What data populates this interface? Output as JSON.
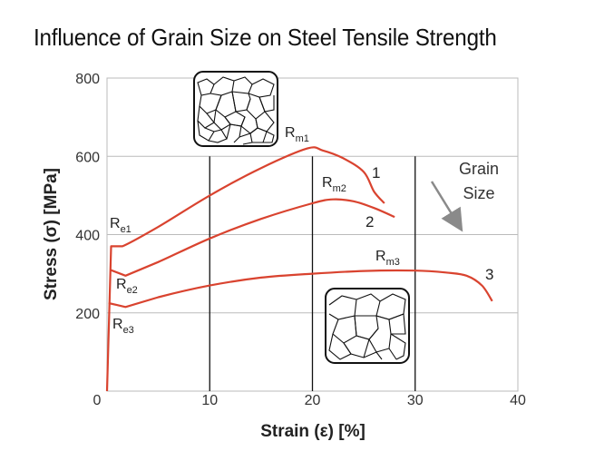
{
  "chart_data": {
    "type": "line",
    "title": "Influence of Grain Size on Steel Tensile Strength",
    "xlabel": "Strain (ε) [%]",
    "ylabel": "Stress (σ) [MPa]",
    "xlim": [
      0,
      40
    ],
    "ylim": [
      0,
      800
    ],
    "x_ticks": [
      "0",
      "10",
      "20",
      "30",
      "40"
    ],
    "y_ticks": [
      "800",
      "600",
      "400",
      "200"
    ],
    "grid": "vertical lines at 10, 20, 30; horizontal lines at 200, 400, 600, 800",
    "line_color": "#d9432f",
    "series": [
      {
        "name": "1",
        "points": [
          [
            0,
            0
          ],
          [
            0.4,
            370
          ],
          [
            1.5,
            370
          ],
          [
            5,
            420
          ],
          [
            10,
            500
          ],
          [
            15,
            570
          ],
          [
            19.5,
            620
          ],
          [
            21,
            615
          ],
          [
            23,
            595
          ],
          [
            25,
            560
          ],
          [
            26,
            510
          ],
          [
            27,
            480
          ]
        ]
      },
      {
        "name": "2",
        "points": [
          [
            0.3,
            310
          ],
          [
            1.8,
            295
          ],
          [
            5,
            330
          ],
          [
            10,
            390
          ],
          [
            15,
            440
          ],
          [
            20,
            480
          ],
          [
            22,
            490
          ],
          [
            24,
            485
          ],
          [
            26,
            468
          ],
          [
            28,
            445
          ]
        ]
      },
      {
        "name": "3",
        "points": [
          [
            0.15,
            225
          ],
          [
            1.8,
            215
          ],
          [
            5,
            240
          ],
          [
            10,
            270
          ],
          [
            15,
            290
          ],
          [
            20,
            300
          ],
          [
            25,
            307
          ],
          [
            30,
            308
          ],
          [
            33,
            303
          ],
          [
            35,
            295
          ],
          [
            36.5,
            270
          ],
          [
            37.5,
            230
          ]
        ]
      }
    ],
    "annotations": {
      "re1": {
        "main": "R",
        "sub": "e1"
      },
      "re2": {
        "main": "R",
        "sub": "e2"
      },
      "re3": {
        "main": "R",
        "sub": "e3"
      },
      "rm1": {
        "main": "R",
        "sub": "m1"
      },
      "rm2": {
        "main": "R",
        "sub": "m2"
      },
      "rm3": {
        "main": "R",
        "sub": "m3"
      },
      "label1": "1",
      "label2": "2",
      "label3": "3",
      "grain_size_line1": "Grain",
      "grain_size_line2": "Size",
      "grain_size_arrow": "arrow-down-right",
      "fine_grain_icon": "fine-grain-microstructure-icon",
      "coarse_grain_icon": "coarse-grain-microstructure-icon"
    }
  }
}
